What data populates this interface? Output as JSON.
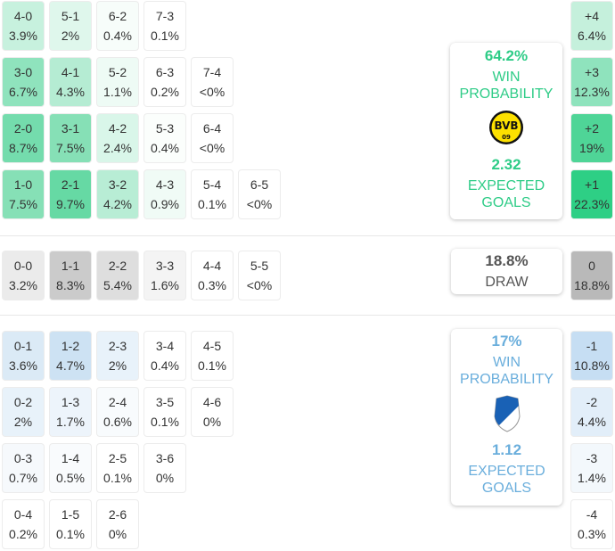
{
  "home_grid": [
    [
      {
        "score": "4-0",
        "pct": "3.9%",
        "bg": "#c7f1de"
      },
      {
        "score": "5-1",
        "pct": "2%",
        "bg": "#dff7ec"
      },
      {
        "score": "6-2",
        "pct": "0.4%",
        "bg": "#f7fdfa"
      },
      {
        "score": "7-3",
        "pct": "0.1%",
        "bg": "#ffffff"
      }
    ],
    [
      {
        "score": "3-0",
        "pct": "6.7%",
        "bg": "#8fe3bd"
      },
      {
        "score": "4-1",
        "pct": "4.3%",
        "bg": "#b5ecd3"
      },
      {
        "score": "5-2",
        "pct": "1.1%",
        "bg": "#eefbf5"
      },
      {
        "score": "6-3",
        "pct": "0.2%",
        "bg": "#ffffff"
      },
      {
        "score": "7-4",
        "pct": "<0%",
        "bg": "#ffffff"
      }
    ],
    [
      {
        "score": "2-0",
        "pct": "8.7%",
        "bg": "#74dcad"
      },
      {
        "score": "3-1",
        "pct": "7.5%",
        "bg": "#86e0b6"
      },
      {
        "score": "4-2",
        "pct": "2.4%",
        "bg": "#d9f6e9"
      },
      {
        "score": "5-3",
        "pct": "0.4%",
        "bg": "#fbfefc"
      },
      {
        "score": "6-4",
        "pct": "<0%",
        "bg": "#ffffff"
      }
    ],
    [
      {
        "score": "1-0",
        "pct": "7.5%",
        "bg": "#86e0b6"
      },
      {
        "score": "2-1",
        "pct": "9.7%",
        "bg": "#66d9a4"
      },
      {
        "score": "3-2",
        "pct": "4.2%",
        "bg": "#b8edd5"
      },
      {
        "score": "4-3",
        "pct": "0.9%",
        "bg": "#f0fbf6"
      },
      {
        "score": "5-4",
        "pct": "0.1%",
        "bg": "#ffffff"
      },
      {
        "score": "6-5",
        "pct": "<0%",
        "bg": "#ffffff"
      }
    ]
  ],
  "draw_row": [
    {
      "score": "0-0",
      "pct": "3.2%",
      "bg": "#ebebeb"
    },
    {
      "score": "1-1",
      "pct": "8.3%",
      "bg": "#cbcbcb"
    },
    {
      "score": "2-2",
      "pct": "5.4%",
      "bg": "#dedede"
    },
    {
      "score": "3-3",
      "pct": "1.6%",
      "bg": "#f4f4f4"
    },
    {
      "score": "4-4",
      "pct": "0.3%",
      "bg": "#ffffff"
    },
    {
      "score": "5-5",
      "pct": "<0%",
      "bg": "#ffffff"
    }
  ],
  "away_grid": [
    [
      {
        "score": "0-1",
        "pct": "3.6%",
        "bg": "#dbeaf6"
      },
      {
        "score": "1-2",
        "pct": "4.7%",
        "bg": "#cde2f3"
      },
      {
        "score": "2-3",
        "pct": "2%",
        "bg": "#e8f2fa"
      },
      {
        "score": "3-4",
        "pct": "0.4%",
        "bg": "#ffffff"
      },
      {
        "score": "4-5",
        "pct": "0.1%",
        "bg": "#ffffff"
      }
    ],
    [
      {
        "score": "0-2",
        "pct": "2%",
        "bg": "#e8f2fa"
      },
      {
        "score": "1-3",
        "pct": "1.7%",
        "bg": "#edf4fb"
      },
      {
        "score": "2-4",
        "pct": "0.6%",
        "bg": "#f8fbfd"
      },
      {
        "score": "3-5",
        "pct": "0.1%",
        "bg": "#ffffff"
      },
      {
        "score": "4-6",
        "pct": "0%",
        "bg": "#ffffff"
      }
    ],
    [
      {
        "score": "0-3",
        "pct": "0.7%",
        "bg": "#f6f9fc"
      },
      {
        "score": "1-4",
        "pct": "0.5%",
        "bg": "#f9fbfd"
      },
      {
        "score": "2-5",
        "pct": "0.1%",
        "bg": "#ffffff"
      },
      {
        "score": "3-6",
        "pct": "0%",
        "bg": "#ffffff"
      }
    ],
    [
      {
        "score": "0-4",
        "pct": "0.2%",
        "bg": "#ffffff"
      },
      {
        "score": "1-5",
        "pct": "0.1%",
        "bg": "#ffffff"
      },
      {
        "score": "2-6",
        "pct": "0%",
        "bg": "#ffffff"
      }
    ]
  ],
  "home_margins": [
    {
      "label": "+4",
      "pct": "6.4%",
      "bg": "#c5f0dc"
    },
    {
      "label": "+3",
      "pct": "12.3%",
      "bg": "#8fe3bd"
    },
    {
      "label": "+2",
      "pct": "19%",
      "bg": "#4fd597"
    },
    {
      "label": "+1",
      "pct": "22.3%",
      "bg": "#2ecf85"
    }
  ],
  "draw_margin": {
    "label": "0",
    "pct": "18.8%",
    "bg": "#b9b9b9"
  },
  "away_margins": [
    {
      "label": "-1",
      "pct": "10.8%",
      "bg": "#c6def3"
    },
    {
      "label": "-2",
      "pct": "4.4%",
      "bg": "#e2eef9"
    },
    {
      "label": "-3",
      "pct": "1.4%",
      "bg": "#f3f8fc"
    },
    {
      "label": "-4",
      "pct": "0.3%",
      "bg": "#ffffff"
    }
  ],
  "home_card": {
    "win_pct": "64.2%",
    "win_label_1": "WIN",
    "win_label_2": "PROBABILITY",
    "team_logo": "bvb-crest-icon",
    "xg": "2.32",
    "xg_label_1": "EXPECTED",
    "xg_label_2": "GOALS",
    "color": "#2ecc87"
  },
  "draw_card": {
    "pct": "18.8%",
    "label": "DRAW",
    "color": "#555555"
  },
  "away_card": {
    "win_pct": "17%",
    "win_label_1": "WIN",
    "win_label_2": "PROBABILITY",
    "team_logo": "hoffenheim-crest-icon",
    "xg": "1.12",
    "xg_label_1": "EXPECTED",
    "xg_label_2": "GOALS",
    "color": "#6aaedc"
  }
}
